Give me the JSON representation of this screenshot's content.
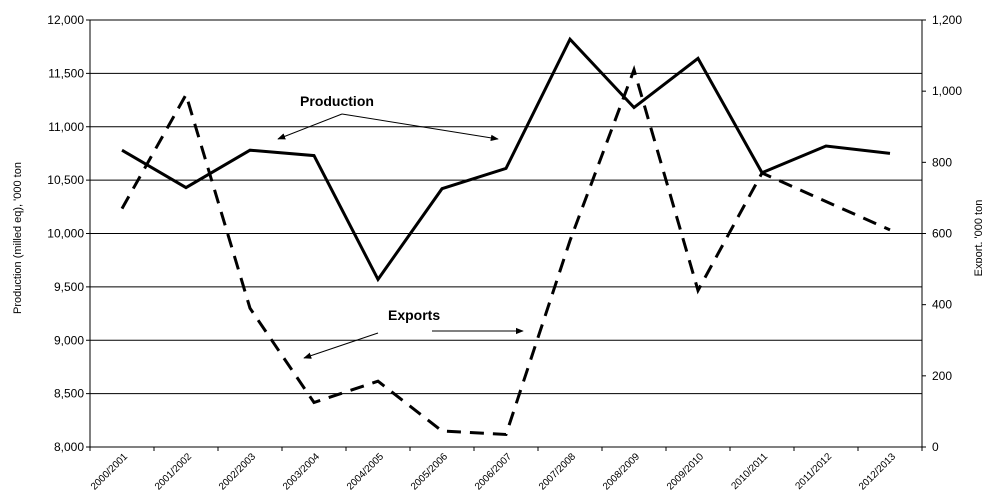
{
  "chart_data": {
    "type": "line",
    "categories": [
      "2000/2001",
      "2001/2002",
      "2002/2003",
      "2003/2004",
      "2004/2005",
      "2005/2006",
      "2006/2007",
      "2007/2008",
      "2008/2009",
      "2009/2010",
      "2010/2011",
      "2011/2012",
      "2012/2013"
    ],
    "series": [
      {
        "name": "Production",
        "axis": "left",
        "style": "solid",
        "color": "#000000",
        "values": [
          10780,
          10430,
          10780,
          10730,
          9570,
          10420,
          10610,
          11820,
          11180,
          11640,
          10570,
          10820,
          10750
        ]
      },
      {
        "name": "Exports",
        "axis": "right",
        "style": "dashed",
        "color": "#000000",
        "values": [
          670,
          990,
          390,
          125,
          185,
          45,
          35,
          580,
          1060,
          440,
          770,
          690,
          610
        ]
      }
    ],
    "ylabel": "Production (milled eq), '000 ton",
    "y2label": "Export, '000 ton",
    "ylim": [
      8000,
      12000
    ],
    "y2lim": [
      0,
      1200
    ],
    "yticks": [
      8000,
      8500,
      9000,
      9500,
      10000,
      10500,
      11000,
      11500,
      12000
    ],
    "y2ticks": [
      0,
      200,
      400,
      600,
      800,
      1000,
      1200
    ],
    "ytick_labels": [
      "8,000",
      "8,500",
      "9,000",
      "9,500",
      "10,000",
      "10,500",
      "11,000",
      "11,500",
      "12,000"
    ],
    "y2tick_labels": [
      "0",
      "200",
      "400",
      "600",
      "800",
      "1,000",
      "1,200"
    ],
    "grid": true,
    "annotations": [
      {
        "text": "Production",
        "series": "Production"
      },
      {
        "text": "Exports",
        "series": "Exports"
      }
    ]
  }
}
